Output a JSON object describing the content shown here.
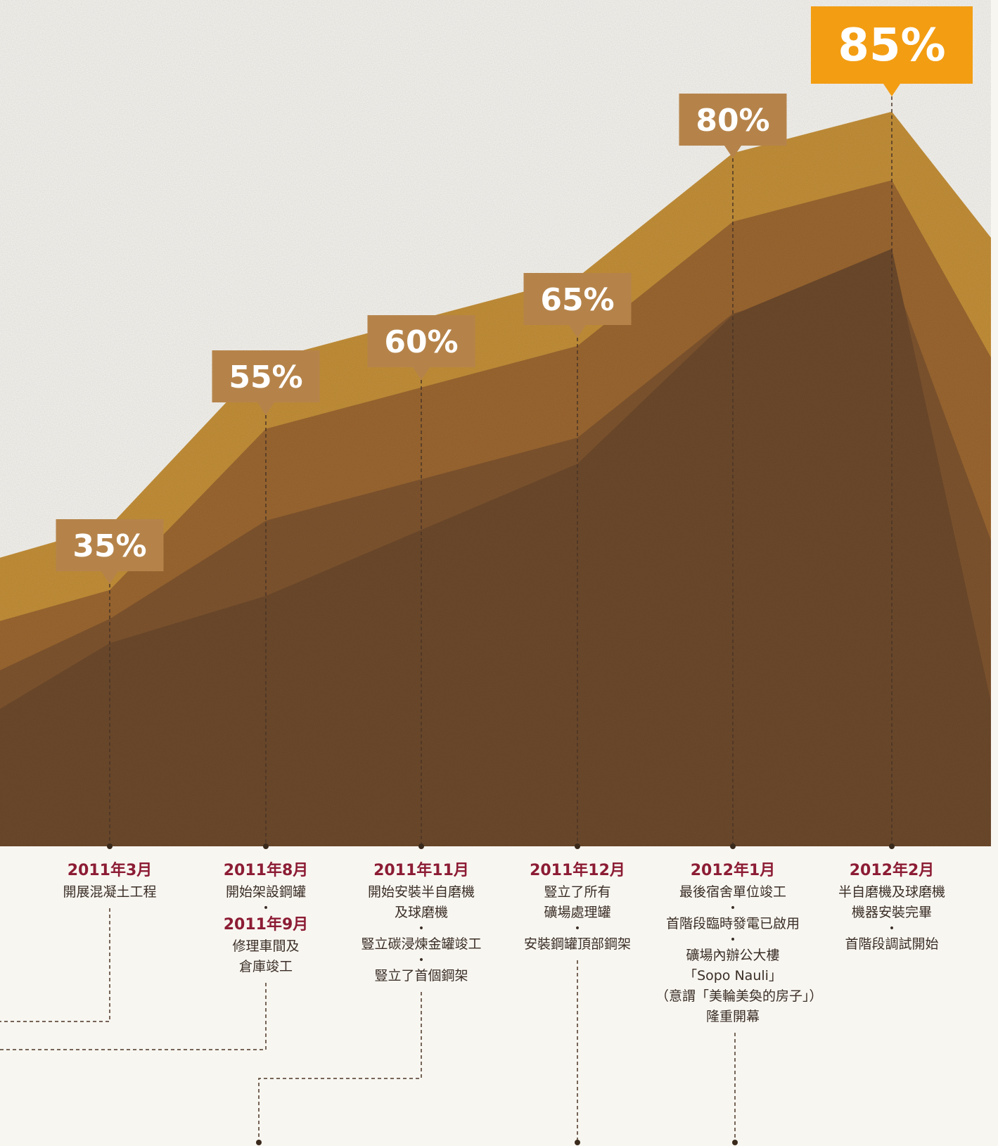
{
  "chart_data": {
    "type": "area",
    "y_unit": "%",
    "x": [
      "2011年3月",
      "2011年8月",
      "2011年11月",
      "2011年12月",
      "2012年1月",
      "2012年2月"
    ],
    "callout_labels": [
      "35%",
      "55%",
      "60%",
      "65%",
      "80%",
      "85%"
    ],
    "values": [
      35,
      55,
      60,
      65,
      80,
      85
    ],
    "highlight_index": 5,
    "colors": {
      "callout": "#b5834a",
      "callout_highlight": "#f39d13",
      "layers": [
        "#6e4a2c",
        "#80552f",
        "#9d6831",
        "#c69139"
      ],
      "date_text": "#8c1c34",
      "body_text": "#3a2e26",
      "background": "#f8f6f1"
    }
  },
  "milestones": [
    {
      "id": "mar2011",
      "groups": [
        {
          "date": "2011年3月",
          "lines": [
            "開展混凝土工程"
          ]
        }
      ]
    },
    {
      "id": "aug2011",
      "groups": [
        {
          "date": "2011年8月",
          "lines": [
            "開始架設鋼罐"
          ]
        },
        {
          "date": "2011年9月",
          "lines": [
            "修理車間及",
            "倉庫竣工"
          ]
        }
      ]
    },
    {
      "id": "nov2011",
      "groups": [
        {
          "date": "2011年11月",
          "lines": [
            "開始安裝半自磨機",
            "及球磨機"
          ]
        },
        {
          "lines": [
            "豎立碳浸煉金罐竣工"
          ]
        },
        {
          "lines": [
            "豎立了首個鋼架"
          ]
        }
      ]
    },
    {
      "id": "dec2011",
      "groups": [
        {
          "date": "2011年12月",
          "lines": [
            "豎立了所有",
            "礦場處理罐"
          ]
        },
        {
          "lines": [
            "安裝鋼罐頂部鋼架"
          ]
        }
      ]
    },
    {
      "id": "jan2012",
      "groups": [
        {
          "date": "2012年1月",
          "lines": [
            "最後宿舍單位竣工"
          ]
        },
        {
          "lines": [
            "首階段臨時發電已啟用"
          ]
        },
        {
          "lines": [
            "礦場內辦公大樓",
            "「Sopo Nauli」",
            "（意謂「美輪美奐的房子」）",
            "隆重開幕"
          ]
        }
      ]
    },
    {
      "id": "feb2012",
      "groups": [
        {
          "date": "2012年2月",
          "lines": [
            "半自磨機及球磨機",
            "機器安裝完畢"
          ]
        },
        {
          "lines": [
            "首階段調試開始"
          ]
        }
      ]
    }
  ]
}
